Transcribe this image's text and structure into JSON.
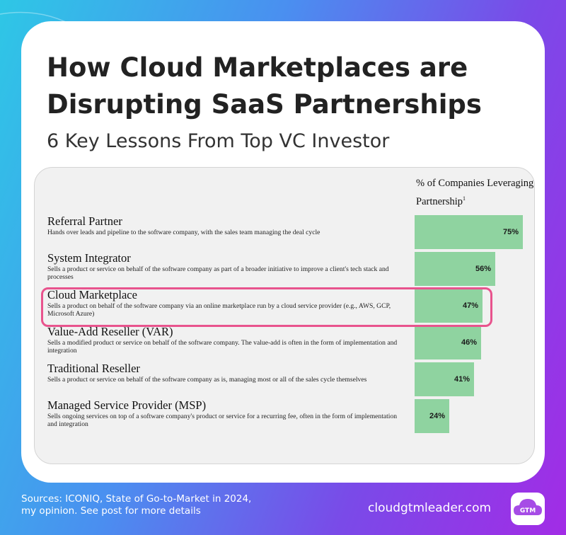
{
  "header": {
    "title": "How Cloud Marketplaces are Disrupting SaaS Partnerships",
    "subtitle": "6 Key Lessons From Top VC Investor"
  },
  "chart_data": {
    "type": "bar",
    "orientation": "horizontal",
    "value_header": "% of Companies Leveraging Partnership",
    "value_header_footnote": "1",
    "highlighted_category": "Cloud Marketplace",
    "categories": [
      "Referral Partner",
      "System Integrator",
      "Cloud Marketplace",
      "Value-Add Reseller (VAR)",
      "Traditional Reseller",
      "Managed Service Provider (MSP)"
    ],
    "descriptions": [
      "Hands over leads and pipeline to the software company, with the sales team managing the deal cycle",
      "Sells a product or service on behalf of the software company as part of a broader initiative to improve a client's tech stack and processes",
      "Sells a product on behalf of the software company via an online marketplace run by a cloud service provider (e.g., AWS, GCP, Microsoft Azure)",
      "Sells a modified product or service on behalf of the software company. The value-add is often in the form of implementation and integration",
      "Sells a product or service on behalf of the software company as is, managing most or all of the sales cycle themselves",
      "Sells ongoing services on top of a software company's product or service for a recurring fee, often in the form of implementation and integration"
    ],
    "values": [
      75,
      56,
      47,
      46,
      41,
      24
    ],
    "value_labels": [
      "75%",
      "56%",
      "47%",
      "46%",
      "41%",
      "24%"
    ],
    "bar_color": "#8fd3a0",
    "highlight_color": "#e8538d"
  },
  "footer": {
    "sources_line1": "Sources: ICONIQ, State of Go-to-Market in 2024,",
    "sources_line2": "my opinion. See post for more details",
    "site": "cloudgtmleader.com",
    "logo_text": "GTM"
  }
}
